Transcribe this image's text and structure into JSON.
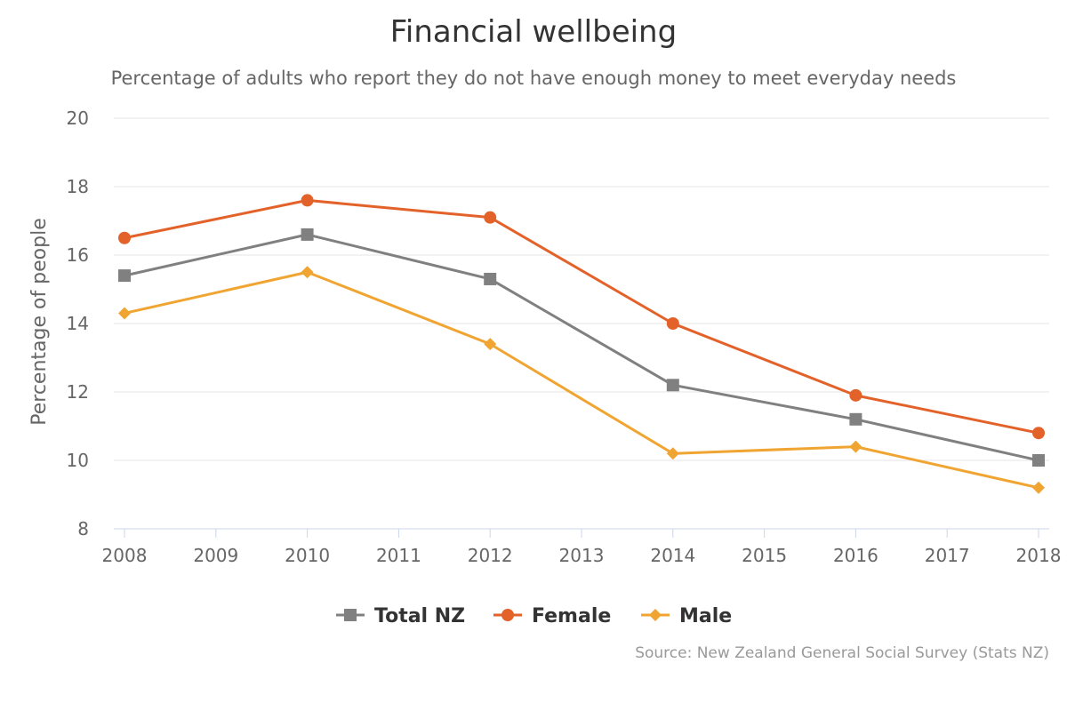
{
  "chart_data": {
    "type": "line",
    "title": "Financial wellbeing",
    "subtitle": "Percentage of adults who report they do not have enough money to meet everyday needs",
    "xlabel": "",
    "ylabel": "Percentage of people",
    "x": [
      2008,
      2010,
      2012,
      2014,
      2016,
      2018
    ],
    "xticks": [
      "2008",
      "2009",
      "2010",
      "2011",
      "2012",
      "2013",
      "2014",
      "2015",
      "2016",
      "2017",
      "2018"
    ],
    "xlim": [
      2008,
      2018
    ],
    "ylim": [
      8,
      20
    ],
    "yticks": [
      "8",
      "10",
      "12",
      "14",
      "16",
      "18",
      "20"
    ],
    "grid": true,
    "legend_position": "bottom",
    "series": [
      {
        "name": "Total NZ",
        "values": [
          15.4,
          16.6,
          15.3,
          12.2,
          11.2,
          10.0
        ],
        "color": "#808080",
        "marker": "square"
      },
      {
        "name": "Female",
        "values": [
          16.5,
          17.6,
          17.1,
          14.0,
          11.9,
          10.8
        ],
        "color": "#E3622A",
        "marker": "circle"
      },
      {
        "name": "Male",
        "values": [
          14.3,
          15.5,
          13.4,
          10.2,
          10.4,
          9.2
        ],
        "color": "#F0A532",
        "marker": "diamond"
      }
    ],
    "source": "Source: New Zealand General Social Survey (Stats NZ)"
  }
}
